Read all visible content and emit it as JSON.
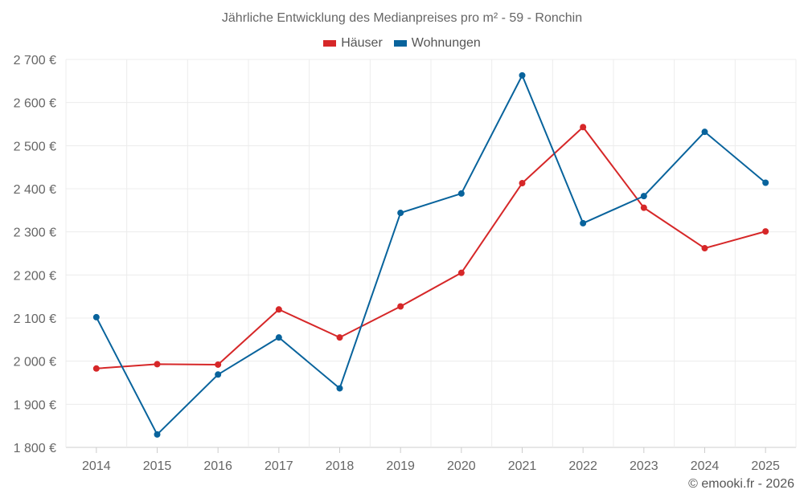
{
  "chart_data": {
    "type": "line",
    "title": "Jährliche Entwicklung des Medianpreises pro m² - 59 - Ronchin",
    "categories": [
      "2014",
      "2015",
      "2016",
      "2017",
      "2018",
      "2019",
      "2020",
      "2021",
      "2022",
      "2023",
      "2024",
      "2025"
    ],
    "series": [
      {
        "name": "Häuser",
        "color": "#d62728",
        "values": [
          1983,
          1993,
          1992,
          2120,
          2055,
          2127,
          2205,
          2413,
          2543,
          2356,
          2262,
          2301
        ]
      },
      {
        "name": "Wohnungen",
        "color": "#08639c",
        "values": [
          2102,
          1830,
          1969,
          2055,
          1937,
          2344,
          2389,
          2663,
          2320,
          2383,
          2532,
          2414
        ]
      }
    ],
    "ylim": [
      1800,
      2700
    ],
    "yticks": [
      1800,
      1900,
      2000,
      2100,
      2200,
      2300,
      2400,
      2500,
      2600,
      2700
    ],
    "ytick_labels": [
      "1 800 €",
      "1 900 €",
      "2 000 €",
      "2 100 €",
      "2 200 €",
      "2 300 €",
      "2 400 €",
      "2 500 €",
      "2 600 €",
      "2 700 €"
    ],
    "grid": true,
    "legend_position": "top-center"
  },
  "credit": "© emooki.fr - 2026"
}
